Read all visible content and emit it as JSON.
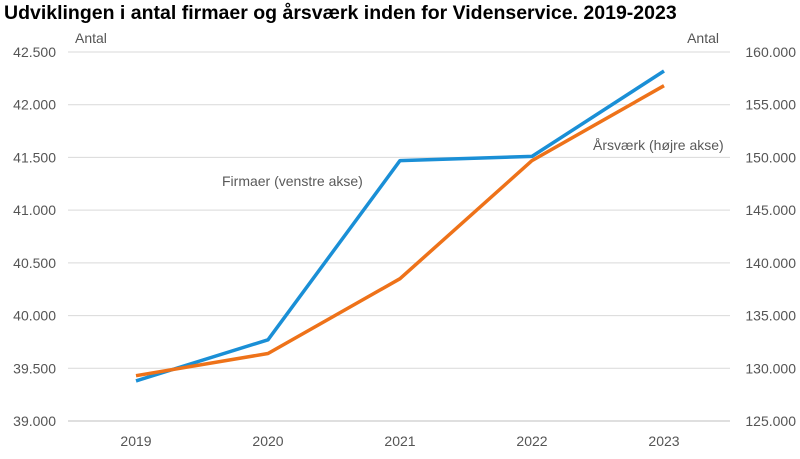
{
  "title": "Udviklingen i antal firmaer og årsværk inden for Videnservice. 2019-2023",
  "chart_data": {
    "type": "line",
    "title": "Udviklingen i antal firmaer og årsværk inden for Videnservice. 2019-2023",
    "categories": [
      "2019",
      "2020",
      "2021",
      "2022",
      "2023"
    ],
    "y_left": {
      "label": "Antal",
      "range": [
        39000,
        42500
      ],
      "ticks": [
        39000,
        39500,
        40000,
        40500,
        41000,
        41500,
        42000,
        42500
      ],
      "tick_labels": [
        "39.000",
        "39.500",
        "40.000",
        "40.500",
        "41.000",
        "41.500",
        "42.000",
        "42.500"
      ]
    },
    "y_right": {
      "label": "Antal",
      "range": [
        125000,
        160000
      ],
      "ticks": [
        125000,
        130000,
        135000,
        140000,
        145000,
        150000,
        155000,
        160000
      ],
      "tick_labels": [
        "125.000",
        "130.000",
        "135.000",
        "140.000",
        "145.000",
        "150.000",
        "155.000",
        "160.000"
      ]
    },
    "series": [
      {
        "name": "Firmaer (venstre akse)",
        "axis": "left",
        "color": "#1a8fd6",
        "values": [
          39380,
          39770,
          41470,
          41510,
          42320
        ]
      },
      {
        "name": "Årsværk (højre akse)",
        "axis": "right",
        "color": "#ee7219",
        "values": [
          129300,
          131400,
          138500,
          149700,
          156800
        ]
      }
    ],
    "grid": true
  }
}
